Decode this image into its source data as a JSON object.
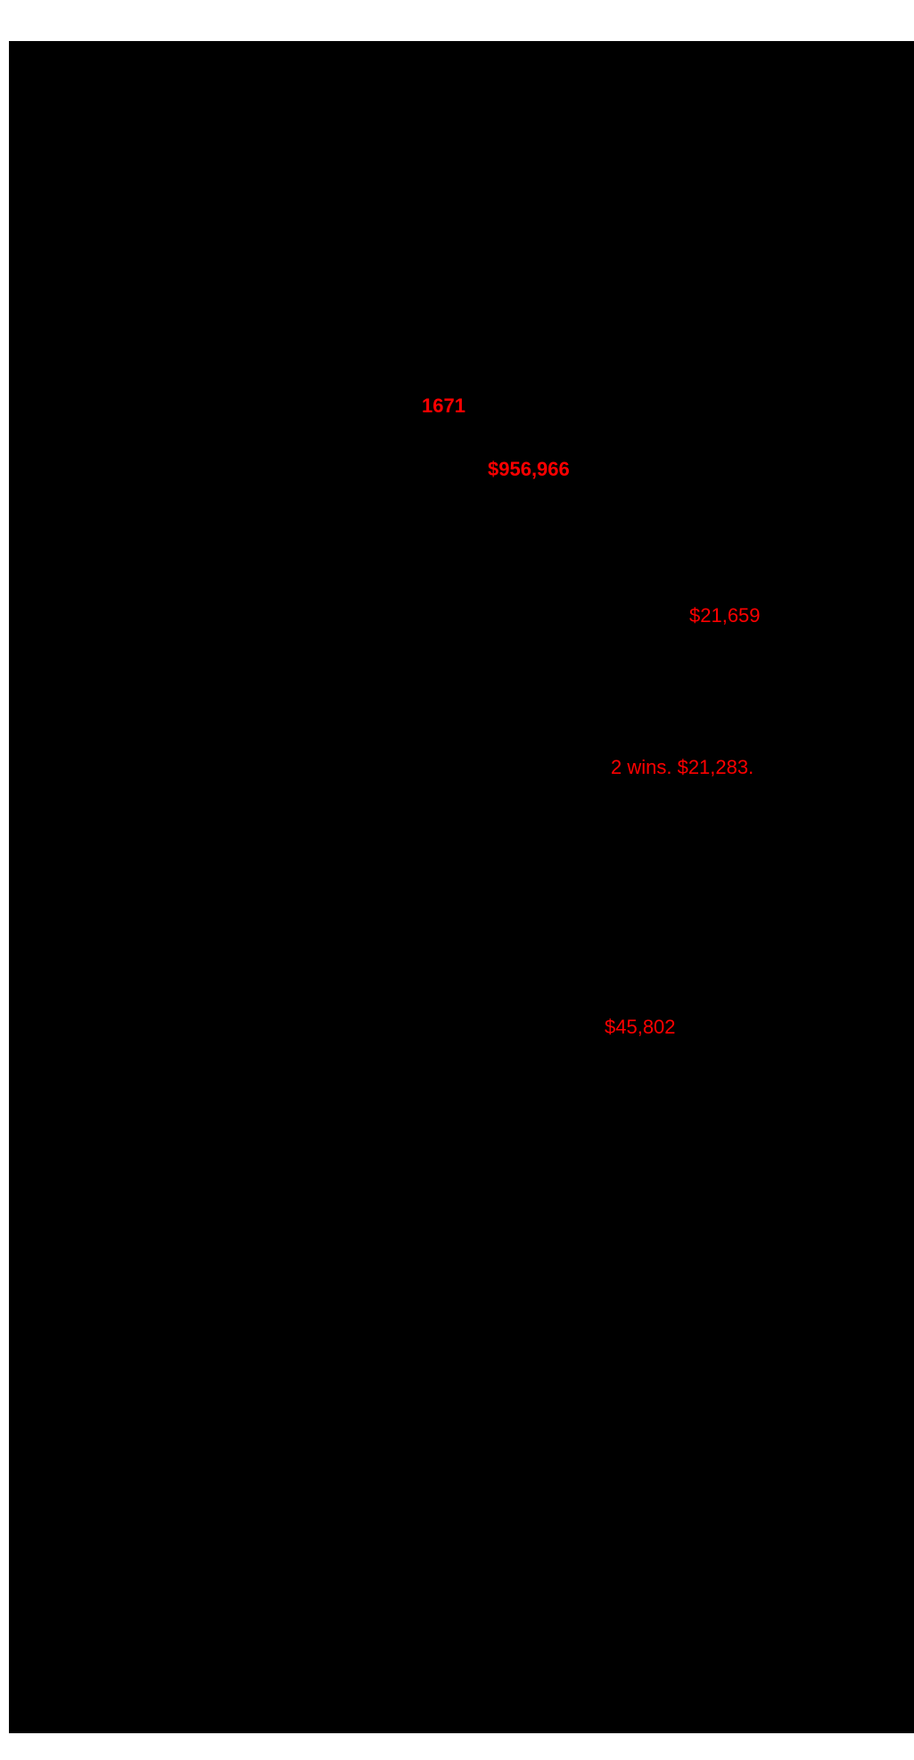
{
  "page": {
    "background_color": "#ffffff",
    "panel_background_color": "#000000",
    "accent_color": "#ff0000"
  },
  "stats": [
    {
      "text": "1671",
      "style": "bold"
    },
    {
      "text": "$956,966",
      "style": "bold"
    },
    {
      "text": "$21,659",
      "style": "regular"
    },
    {
      "text": "2 wins. $21,283.",
      "style": "regular"
    },
    {
      "text": "$45,802",
      "style": "regular"
    }
  ]
}
